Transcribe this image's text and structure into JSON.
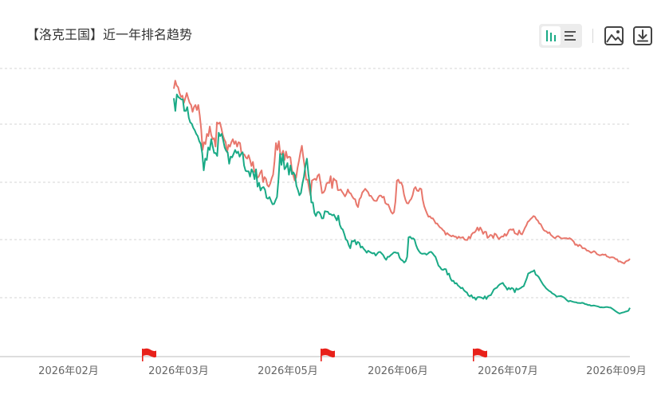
{
  "title": "【洛克王国】近一年排名趋势",
  "toolbar": {
    "icons": [
      "bar-chart-icon",
      "list-icon",
      "image-icon",
      "download-icon"
    ],
    "active": "bar-chart-icon"
  },
  "colors": {
    "series_red": "#e8776c",
    "series_green": "#1aaa86",
    "grid": "#d6d6d6",
    "flag": "#e8211a"
  },
  "chart_data": {
    "type": "line",
    "grid": true,
    "x_labels": [
      "2026年02月",
      "2026年03月",
      "2026年05月",
      "2026年06月",
      "2026年07月",
      "2026年09月"
    ],
    "event_flags": [
      "2026年03月",
      "2026年05月",
      "2026年07月"
    ],
    "series": [
      {
        "color": "#e8776c",
        "values": [
          15.5,
          13,
          14.5,
          15,
          17,
          18.5,
          18,
          21,
          19,
          17,
          19,
          21,
          22,
          25.5,
          23,
          22,
          24.5,
          22,
          27.5,
          37,
          58,
          49,
          51,
          41,
          43,
          35,
          42,
          46,
          45,
          54,
          32,
          33,
          32,
          36,
          42,
          46,
          49,
          61,
          52,
          54,
          49,
          46,
          51,
          48,
          54,
          49,
          50,
          62,
          63,
          64,
          68,
          70,
          65,
          72,
          82,
          75,
          93,
          91,
          106,
          103,
          95,
          90,
          116,
          104,
          108,
          124,
          128,
          120,
          107,
          99,
          74,
          50,
          58,
          48,
          63,
          64,
          59,
          72,
          60,
          69,
          67,
          68,
          88,
          100,
          112,
          105,
          85,
          73,
          61,
          53,
          68,
          84,
          110,
          110,
          132,
          154,
          112,
          110,
          108,
          111,
          101,
          98,
          119,
          147,
          145,
          138,
          121,
          117,
          118,
          102,
          132,
          107,
          111,
          113,
          138,
          138,
          136,
          143,
          150,
          158,
          149,
          136,
          146,
          148,
          158,
          166,
          168,
          189,
          199,
          168,
          161,
          145,
          140,
          134,
          139,
          144,
          156,
          156,
          164,
          172,
          174,
          174,
          162,
          155,
          155,
          162,
          159,
          182,
          187,
          188,
          203,
          220,
          229,
          222,
          177,
          113,
          110,
          118,
          117,
          126,
          152,
          170,
          183,
          184,
          173,
          167,
          154,
          134,
          129,
          139,
          141,
          133,
          135,
          170,
          195,
          212,
          229,
          245,
          243,
          253,
          253,
          266,
          283,
          283,
          297,
          308,
          314,
          326,
          334,
          361,
          348,
          359,
          367,
          374,
          367,
          377,
          376,
          391,
          376,
          386,
          384,
          381,
          400,
          404,
          404,
          377,
          390,
          358,
          346,
          344,
          331,
          309,
          330,
          309,
          326,
          354,
          339,
          339,
          386,
          377,
          362,
          366,
          388,
          352,
          359,
          380,
          398,
          383,
          374,
          376,
          355,
          369,
          351,
          326,
          322,
          325,
          320,
          350,
          354,
          361,
          329,
          353,
          358,
          335,
          312,
          296,
          274,
          267,
          257,
          250,
          241,
          245,
          259,
          266,
          283,
          287,
          306,
          325,
          333,
          336,
          348,
          343,
          362,
          372,
          383,
          390,
          376,
          371,
          379,
          389,
          391,
          389,
          389,
          389,
          395,
          388,
          395,
          406,
          420,
          449,
          445,
          462,
          448,
          459,
          483,
          482,
          488,
          508,
          510,
          520,
          533,
          524,
          514,
          525,
          547,
          555,
          563,
          559,
          552,
          558,
          553,
          577,
          582,
          593,
          587,
          587,
          593,
          611,
          611,
          644,
          640,
          652,
          662,
          671,
          644,
          633,
          629,
          606
        ]
      },
      {
        "color": "#1aaa86",
        "values": [
          19,
          25,
          17.5,
          18.5,
          19,
          19.5,
          19.5,
          25,
          25,
          23,
          29,
          32,
          33,
          36,
          38,
          41,
          43,
          48,
          51,
          62,
          90,
          70,
          72,
          55,
          58,
          46,
          54,
          62,
          62,
          66,
          40,
          43,
          41,
          47,
          55,
          59,
          61,
          78,
          67,
          68,
          63,
          58,
          62,
          60,
          67,
          63,
          61,
          81,
          91,
          92,
          92,
          103,
          88,
          94,
          109,
          88,
          128,
          118,
          139,
          131,
          129,
          137,
          163,
          166,
          160,
          174,
          187,
          186,
          172,
          160,
          109,
          63,
          80,
          63,
          88,
          84,
          77,
          99,
          81,
          98,
          94,
          100,
          126,
          138,
          154,
          147,
          120,
          103,
          82,
          70,
          98,
          124,
          180,
          180,
          225,
          241,
          222,
          221,
          231,
          254,
          253,
          217,
          219,
          220,
          231,
          232,
          238,
          234,
          248,
          265,
          239,
          292,
          314,
          323,
          356,
          399,
          409,
          452,
          483,
          412,
          418,
          405,
          446,
          421,
          431,
          476,
          466,
          490,
          508,
          532,
          510,
          522,
          533,
          540,
          536,
          566,
          542,
          525,
          523,
          540,
          560,
          596,
          620,
          581,
          580,
          562,
          547,
          530,
          528,
          535,
          535,
          594,
          620,
          630,
          657,
          639,
          583,
          382,
          377,
          393,
          390,
          401,
          452,
          490,
          517,
          537,
          545,
          542,
          541,
          555,
          541,
          526,
          522,
          538,
          562,
          583,
          641,
          703,
          726,
          762,
          771,
          757,
          761,
          853,
          834,
          931,
          977,
          976,
          1034,
          1026,
          1077,
          1106,
          1146,
          1132,
          1195,
          1232,
          1256,
          1341,
          1364,
          1329,
          1411,
          1396,
          1468,
          1392,
          1382,
          1392,
          1406,
          1436,
          1362,
          1446,
          1365,
          1341,
          1328,
          1252,
          1177,
          1148,
          1133,
          1084,
          1054,
          1035,
          1020,
          1080,
          1115,
          1182,
          1134,
          1173,
          1136,
          1157,
          1250,
          1148,
          1181,
          1161,
          1138,
          1109,
          1094,
          1006,
          926,
          831,
          822,
          804,
          796,
          776,
          853,
          869,
          898,
          952,
          1007,
          1059,
          1101,
          1151,
          1182,
          1214,
          1233,
          1278,
          1300,
          1327,
          1372,
          1364,
          1358,
          1353,
          1377,
          1400,
          1444,
          1488,
          1525,
          1501,
          1520,
          1534,
          1546,
          1550,
          1572,
          1571,
          1581,
          1567,
          1579,
          1610,
          1618,
          1645,
          1640,
          1670,
          1667,
          1660,
          1675,
          1686,
          1701,
          1728,
          1725,
          1734,
          1728,
          1715,
          1718,
          1732,
          1738,
          1772,
          1812,
          1857,
          1901,
          1942,
          1974,
          1955,
          1936,
          1922,
          1894,
          1884,
          1860,
          1745
        ]
      }
    ]
  }
}
